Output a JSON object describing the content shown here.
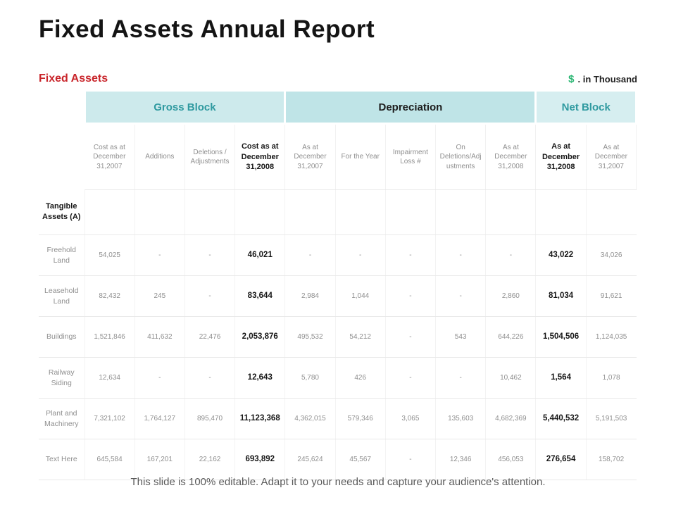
{
  "page": {
    "title": "Fixed Assets Annual Report",
    "section_title": "Fixed Assets",
    "currency_symbol": "$",
    "currency_note": ". in Thousand",
    "footer": "This slide is 100% editable. Adapt it to your needs and capture your audience's attention."
  },
  "colors": {
    "accent_teal_text": "#2f9aa0",
    "group_bg_gross": "#cdeaec",
    "group_bg_depreciation": "#bfe4e7",
    "group_bg_net": "#d6eef0",
    "section_title_red": "#c9252b",
    "currency_green": "#2bb673",
    "cell_text_gray": "#8f8f8f",
    "bold_text_black": "#161616"
  },
  "table": {
    "groups": [
      {
        "label": "Gross Block",
        "span": 4,
        "style": "g-gross"
      },
      {
        "label": "Depreciation",
        "span": 5,
        "style": "g-dep"
      },
      {
        "label": "Net Block",
        "span": 2,
        "style": "g-net"
      }
    ],
    "columns": [
      {
        "label": "Cost as at December 31,2007",
        "bold": false
      },
      {
        "label": "Additions",
        "bold": false
      },
      {
        "label": "Deletions / Adjustments",
        "bold": false
      },
      {
        "label": "Cost as at December 31,2008",
        "bold": true
      },
      {
        "label": "As at December 31,2007",
        "bold": false
      },
      {
        "label": "For the Year",
        "bold": false
      },
      {
        "label": "Impairment Loss #",
        "bold": false
      },
      {
        "label": "On Deletions/Adj ustments",
        "bold": false
      },
      {
        "label": "As at December 31,2008",
        "bold": false
      },
      {
        "label": "As at December 31,2008",
        "bold": true
      },
      {
        "label": "As at December 31,2007",
        "bold": false
      }
    ],
    "bold_column_indexes": [
      3,
      9
    ],
    "section_row": {
      "label": "Tangible Assets (A)",
      "values": [
        "",
        "",
        "",
        "",
        "",
        "",
        "",
        "",
        "",
        "",
        ""
      ]
    },
    "rows": [
      {
        "label": "Freehold Land",
        "values": [
          "54,025",
          "-",
          "-",
          "46,021",
          "-",
          "-",
          "-",
          "-",
          "-",
          "43,022",
          "34,026"
        ]
      },
      {
        "label": "Leasehold Land",
        "values": [
          "82,432",
          "245",
          "-",
          "83,644",
          "2,984",
          "1,044",
          "-",
          "-",
          "2,860",
          "81,034",
          "91,621"
        ]
      },
      {
        "label": "Buildings",
        "values": [
          "1,521,846",
          "411,632",
          "22,476",
          "2,053,876",
          "495,532",
          "54,212",
          "-",
          "543",
          "644,226",
          "1,504,506",
          "1,124,035"
        ]
      },
      {
        "label": "Railway Siding",
        "values": [
          "12,634",
          "-",
          "-",
          "12,643",
          "5,780",
          "426",
          "-",
          "-",
          "10,462",
          "1,564",
          "1,078"
        ]
      },
      {
        "label": "Plant and Machinery",
        "values": [
          "7,321,102",
          "1,764,127",
          "895,470",
          "11,123,368",
          "4,362,015",
          "579,346",
          "3,065",
          "135,603",
          "4,682,369",
          "5,440,532",
          "5,191,503"
        ]
      },
      {
        "label": "Text Here",
        "values": [
          "645,584",
          "167,201",
          "22,162",
          "693,892",
          "245,624",
          "45,567",
          "-",
          "12,346",
          "456,053",
          "276,654",
          "158,702"
        ]
      }
    ]
  }
}
